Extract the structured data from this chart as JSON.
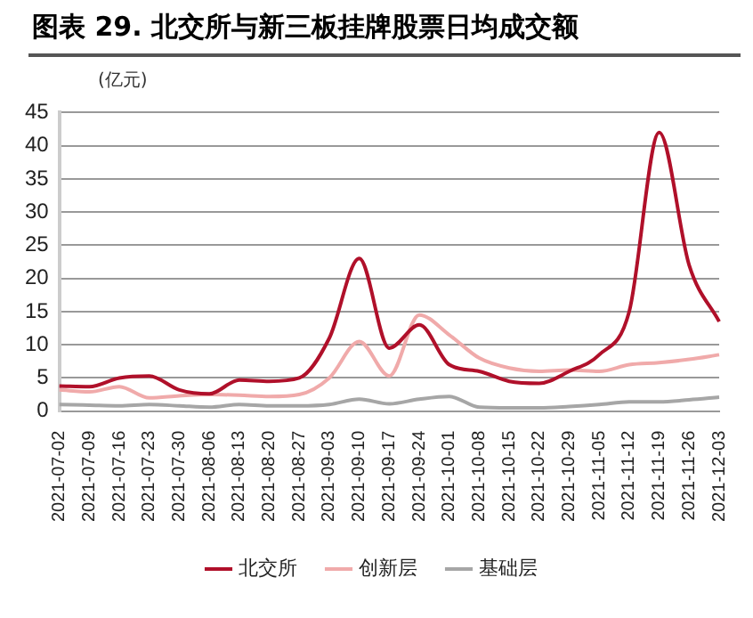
{
  "chart_data": {
    "type": "line",
    "title": "图表 29. 北交所与新三板挂牌股票日均成交额",
    "ylabel": "(亿元)",
    "categories": [
      "2021-07-02",
      "2021-07-09",
      "2021-07-16",
      "2021-07-23",
      "2021-07-30",
      "2021-08-06",
      "2021-08-13",
      "2021-08-20",
      "2021-08-27",
      "2021-09-03",
      "2021-09-10",
      "2021-09-17",
      "2021-09-24",
      "2021-10-01",
      "2021-10-08",
      "2021-10-15",
      "2021-10-22",
      "2021-10-29",
      "2021-11-05",
      "2021-11-12",
      "2021-11-19",
      "2021-11-26",
      "2021-12-03"
    ],
    "series": [
      {
        "name": "北交所",
        "color": "#b0102a",
        "values": [
          3.8,
          3.7,
          5.0,
          5.3,
          3.2,
          2.6,
          4.7,
          4.5,
          5.0,
          11,
          23,
          9.5,
          13,
          7,
          6,
          4.5,
          4.2,
          6,
          8.5,
          15,
          42,
          22,
          13.5
        ]
      },
      {
        "name": "创新层",
        "color": "#f0aaaa",
        "values": [
          3.2,
          2.9,
          3.7,
          2.0,
          2.3,
          2.5,
          2.4,
          2.2,
          2.5,
          5,
          10.5,
          5.3,
          14.5,
          11.5,
          8,
          6.5,
          6,
          6.2,
          6,
          7,
          7.3,
          7.8,
          8.5
        ]
      },
      {
        "name": "基础层",
        "color": "#a6a6a6",
        "values": [
          1.0,
          0.9,
          0.8,
          1.0,
          0.8,
          0.6,
          1.0,
          0.8,
          0.8,
          1.0,
          1.8,
          1.1,
          1.8,
          2.2,
          0.6,
          0.5,
          0.5,
          0.7,
          1.0,
          1.4,
          1.4,
          1.7,
          2.1
        ]
      }
    ],
    "ylim": [
      0,
      45
    ],
    "yticks": [
      0,
      5,
      10,
      15,
      20,
      25,
      30,
      35,
      40,
      45
    ],
    "grid": "y",
    "legend": "bottom",
    "marker": "none",
    "line_style": "solid"
  }
}
